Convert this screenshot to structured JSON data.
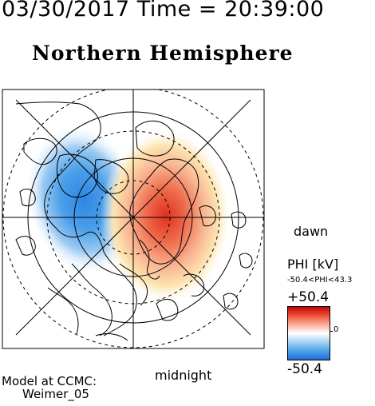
{
  "header": {
    "timestamp": "03/30/2017 Time = 20:39:00",
    "title": "Northern Hemisphere"
  },
  "map": {
    "local_time_labels": {
      "dawn": "dawn",
      "midnight": "midnight"
    },
    "colors": {
      "positive": "#d40000",
      "negative": "#1f6ed8",
      "neutral": "#ffffff",
      "grid": "#000000"
    },
    "potential_cells": [
      {
        "sign": "negative",
        "description": "dusk-side negative potential cell"
      },
      {
        "sign": "positive",
        "description": "dawn-side positive potential cell"
      }
    ]
  },
  "legend": {
    "quantity": "PHI [kV]",
    "range_text": "-50.4<PHI<43.3",
    "max_label": "+50.4",
    "zero_label": "0",
    "min_label": "-50.4",
    "max": 50.4,
    "min": -50.4
  },
  "credit": {
    "line1": "Model at CCMC:",
    "line2": "Weimer_05"
  }
}
